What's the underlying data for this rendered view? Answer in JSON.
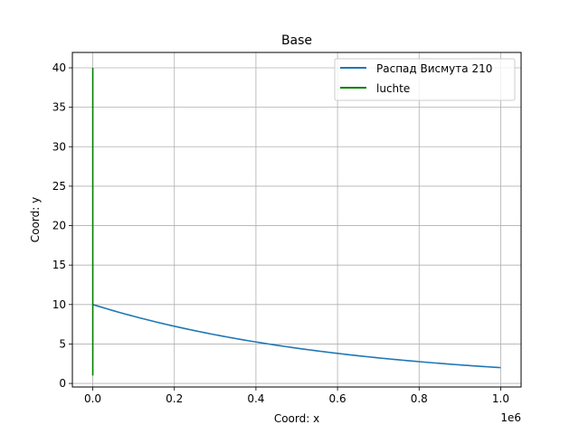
{
  "chart_data": {
    "type": "line",
    "title": "Base",
    "xlabel": "Coord: x",
    "ylabel": "Coord: y",
    "x_offset_label": "1e6",
    "x_scale": 1000000,
    "xlim": [
      -50000,
      1050000
    ],
    "ylim": [
      -0.45,
      41.95
    ],
    "x_ticks": [
      0,
      200000,
      400000,
      600000,
      800000,
      1000000
    ],
    "x_tick_labels": [
      "0.0",
      "0.2",
      "0.4",
      "0.6",
      "0.8",
      "1.0"
    ],
    "y_ticks": [
      0,
      5,
      10,
      15,
      20,
      25,
      30,
      35,
      40
    ],
    "y_tick_labels": [
      "0",
      "5",
      "10",
      "15",
      "20",
      "25",
      "30",
      "35",
      "40"
    ],
    "grid": true,
    "legend_position": "top-right",
    "series": [
      {
        "name": "Распад Висмута 210",
        "color": "#1f77b4",
        "x": [
          0,
          100000,
          200000,
          300000,
          400000,
          500000,
          600000,
          700000,
          800000,
          900000,
          1000000
        ],
        "y": [
          10.0,
          8.51,
          7.25,
          6.17,
          5.25,
          4.47,
          3.81,
          3.24,
          2.76,
          2.35,
          2.0
        ]
      },
      {
        "name": "luchte",
        "color": "#008000",
        "x": [
          0,
          0
        ],
        "y": [
          1,
          40
        ]
      }
    ]
  }
}
